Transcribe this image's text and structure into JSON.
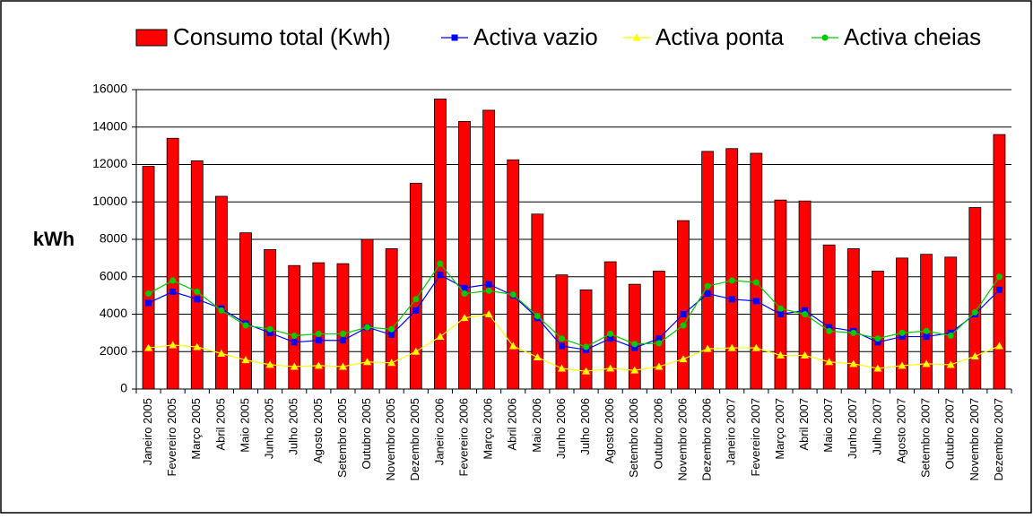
{
  "chart_data": {
    "type": "bar",
    "y_label": "kWh",
    "categories": [
      "Janeiro 2005",
      "Fevereiro 2005",
      "Março 2005",
      "Abril 2005",
      "Maio 2005",
      "Junho 2005",
      "Julho 2005",
      "Agosto 2005",
      "Setembro 2005",
      "Outubro 2005",
      "Novembro 2005",
      "Dezembro 2005",
      "Janeiro 2006",
      "Fevereiro 2006",
      "Março 2006",
      "Abril 2006",
      "Maio 2006",
      "Junho 2006",
      "Julho 2006",
      "Agosto 2006",
      "Setembro 2006",
      "Outubro 2006",
      "Novembro 2006",
      "Dezembro 2006",
      "Janeiro 2007",
      "Fevereiro 2007",
      "Março 2007",
      "Abril 2007",
      "Maio 2007",
      "Junho 2007",
      "Julho 2007",
      "Agosto 2007",
      "Setembro 2007",
      "Outubro 2007",
      "Novembro 2007",
      "Dezembro 2007"
    ],
    "series": [
      {
        "name": "Consumo total (Kwh)",
        "type": "bar",
        "color": "#ff0000",
        "values": [
          11900,
          13400,
          12200,
          10300,
          8350,
          7450,
          6600,
          6750,
          6700,
          8000,
          7500,
          11000,
          15500,
          14300,
          14900,
          12250,
          9350,
          6100,
          5300,
          6800,
          5600,
          6300,
          9000,
          12700,
          12850,
          12600,
          10100,
          10050,
          7700,
          7500,
          6300,
          7000,
          7200,
          7050,
          9700,
          13600
        ]
      },
      {
        "name": "Activa vazio",
        "type": "line",
        "marker": "square",
        "color": "#0000ff",
        "values": [
          4600,
          5200,
          4800,
          4300,
          3500,
          3000,
          2500,
          2600,
          2600,
          3300,
          2900,
          4200,
          6100,
          5400,
          5600,
          5000,
          3800,
          2300,
          2100,
          2700,
          2200,
          2700,
          4000,
          5100,
          4800,
          4700,
          4000,
          4200,
          3300,
          3100,
          2500,
          2800,
          2800,
          3000,
          4000,
          5300
        ]
      },
      {
        "name": "Activa ponta",
        "type": "line",
        "marker": "triangle",
        "color": "#ffff00",
        "values": [
          2200,
          2350,
          2250,
          1900,
          1550,
          1300,
          1200,
          1250,
          1200,
          1450,
          1400,
          2000,
          2800,
          3800,
          4000,
          2300,
          1700,
          1100,
          950,
          1100,
          1000,
          1200,
          1600,
          2150,
          2200,
          2200,
          1800,
          1800,
          1450,
          1350,
          1100,
          1250,
          1350,
          1300,
          1750,
          2300
        ]
      },
      {
        "name": "Activa cheias",
        "type": "line",
        "marker": "circle",
        "color": "#00cc00",
        "values": [
          5100,
          5800,
          5200,
          4200,
          3400,
          3200,
          2850,
          2950,
          2950,
          3300,
          3200,
          4800,
          6700,
          5100,
          5250,
          5050,
          3900,
          2700,
          2250,
          2950,
          2400,
          2450,
          3400,
          5500,
          5800,
          5700,
          4300,
          4000,
          3100,
          3000,
          2700,
          3000,
          3100,
          2850,
          4100,
          6000
        ]
      }
    ],
    "ylim": [
      0,
      16000
    ],
    "yticks": [
      0,
      2000,
      4000,
      6000,
      8000,
      10000,
      12000,
      14000,
      16000
    ],
    "grid": true
  }
}
